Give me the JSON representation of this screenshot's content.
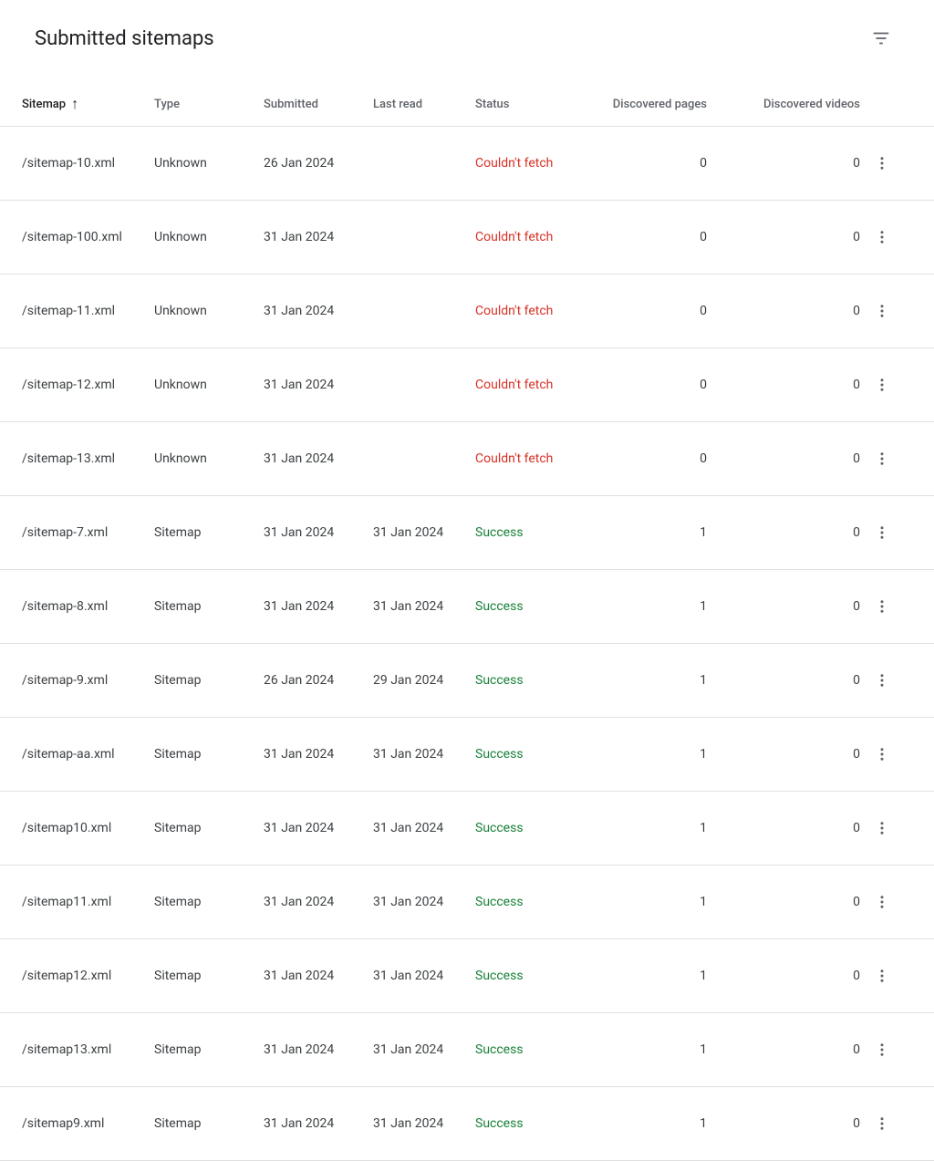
{
  "header": {
    "title": "Submitted sitemaps"
  },
  "columns": {
    "sitemap": "Sitemap",
    "type": "Type",
    "submitted": "Submitted",
    "lastRead": "Last read",
    "status": "Status",
    "discoveredPages": "Discovered pages",
    "discoveredVideos": "Discovered videos"
  },
  "sort": {
    "column": "sitemap",
    "direction": "asc",
    "arrow": "↑"
  },
  "statusColors": {
    "error": "#d93025",
    "success": "#188038"
  },
  "rows": [
    {
      "sitemap": "/sitemap-10.xml",
      "type": "Unknown",
      "submitted": "26 Jan 2024",
      "lastRead": "",
      "status": "Couldn't fetch",
      "statusKind": "error",
      "pages": "0",
      "videos": "0"
    },
    {
      "sitemap": "/sitemap-100.xml",
      "type": "Unknown",
      "submitted": "31 Jan 2024",
      "lastRead": "",
      "status": "Couldn't fetch",
      "statusKind": "error",
      "pages": "0",
      "videos": "0"
    },
    {
      "sitemap": "/sitemap-11.xml",
      "type": "Unknown",
      "submitted": "31 Jan 2024",
      "lastRead": "",
      "status": "Couldn't fetch",
      "statusKind": "error",
      "pages": "0",
      "videos": "0"
    },
    {
      "sitemap": "/sitemap-12.xml",
      "type": "Unknown",
      "submitted": "31 Jan 2024",
      "lastRead": "",
      "status": "Couldn't fetch",
      "statusKind": "error",
      "pages": "0",
      "videos": "0"
    },
    {
      "sitemap": "/sitemap-13.xml",
      "type": "Unknown",
      "submitted": "31 Jan 2024",
      "lastRead": "",
      "status": "Couldn't fetch",
      "statusKind": "error",
      "pages": "0",
      "videos": "0"
    },
    {
      "sitemap": "/sitemap-7.xml",
      "type": "Sitemap",
      "submitted": "31 Jan 2024",
      "lastRead": "31 Jan 2024",
      "status": "Success",
      "statusKind": "success",
      "pages": "1",
      "videos": "0"
    },
    {
      "sitemap": "/sitemap-8.xml",
      "type": "Sitemap",
      "submitted": "31 Jan 2024",
      "lastRead": "31 Jan 2024",
      "status": "Success",
      "statusKind": "success",
      "pages": "1",
      "videos": "0"
    },
    {
      "sitemap": "/sitemap-9.xml",
      "type": "Sitemap",
      "submitted": "26 Jan 2024",
      "lastRead": "29 Jan 2024",
      "status": "Success",
      "statusKind": "success",
      "pages": "1",
      "videos": "0"
    },
    {
      "sitemap": "/sitemap-aa.xml",
      "type": "Sitemap",
      "submitted": "31 Jan 2024",
      "lastRead": "31 Jan 2024",
      "status": "Success",
      "statusKind": "success",
      "pages": "1",
      "videos": "0"
    },
    {
      "sitemap": "/sitemap10.xml",
      "type": "Sitemap",
      "submitted": "31 Jan 2024",
      "lastRead": "31 Jan 2024",
      "status": "Success",
      "statusKind": "success",
      "pages": "1",
      "videos": "0"
    },
    {
      "sitemap": "/sitemap11.xml",
      "type": "Sitemap",
      "submitted": "31 Jan 2024",
      "lastRead": "31 Jan 2024",
      "status": "Success",
      "statusKind": "success",
      "pages": "1",
      "videos": "0"
    },
    {
      "sitemap": "/sitemap12.xml",
      "type": "Sitemap",
      "submitted": "31 Jan 2024",
      "lastRead": "31 Jan 2024",
      "status": "Success",
      "statusKind": "success",
      "pages": "1",
      "videos": "0"
    },
    {
      "sitemap": "/sitemap13.xml",
      "type": "Sitemap",
      "submitted": "31 Jan 2024",
      "lastRead": "31 Jan 2024",
      "status": "Success",
      "statusKind": "success",
      "pages": "1",
      "videos": "0"
    },
    {
      "sitemap": "/sitemap9.xml",
      "type": "Sitemap",
      "submitted": "31 Jan 2024",
      "lastRead": "31 Jan 2024",
      "status": "Success",
      "statusKind": "success",
      "pages": "1",
      "videos": "0"
    }
  ]
}
